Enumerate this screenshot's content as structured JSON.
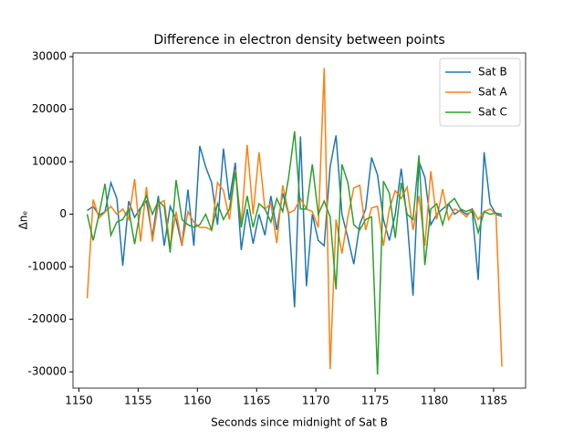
{
  "chart_data": {
    "type": "line",
    "title": "Difference in electron density between points",
    "xlabel": "Seconds since midnight of Sat B",
    "ylabel": "Δnₑ",
    "x": [
      1150.7,
      1151.2,
      1151.7,
      1152.2,
      1152.7,
      1153.2,
      1153.7,
      1154.2,
      1154.7,
      1155.2,
      1155.7,
      1156.2,
      1156.7,
      1157.2,
      1157.7,
      1158.2,
      1158.7,
      1159.2,
      1159.7,
      1160.2,
      1160.7,
      1161.2,
      1161.7,
      1162.2,
      1162.7,
      1163.2,
      1163.7,
      1164.2,
      1164.7,
      1165.2,
      1165.7,
      1166.2,
      1166.7,
      1167.2,
      1167.7,
      1168.2,
      1168.7,
      1169.2,
      1169.7,
      1170.2,
      1170.7,
      1171.2,
      1171.7,
      1172.2,
      1172.7,
      1173.2,
      1173.7,
      1174.2,
      1174.7,
      1175.2,
      1175.7,
      1176.2,
      1176.7,
      1177.2,
      1177.7,
      1178.2,
      1178.7,
      1179.2,
      1179.7,
      1180.2,
      1180.7,
      1181.2,
      1181.7,
      1182.2,
      1182.7,
      1183.2,
      1183.7,
      1184.2,
      1184.7,
      1185.2,
      1185.7
    ],
    "series": [
      {
        "name": "Sat B",
        "color": "#1f77b4",
        "values": [
          700,
          1500,
          -200,
          500,
          6000,
          3000,
          -9800,
          2500,
          -600,
          1200,
          2500,
          -4300,
          3500,
          -6000,
          1500,
          -1000,
          -6000,
          4700,
          -6000,
          13000,
          9000,
          6000,
          -2000,
          12500,
          2700,
          9800,
          -6800,
          1000,
          -5600,
          0,
          -4000,
          3500,
          -3000,
          4000,
          0,
          -17700,
          14800,
          -13700,
          0,
          -5000,
          -6000,
          9000,
          15000,
          0,
          -4500,
          -9500,
          -2000,
          1000,
          10800,
          7500,
          -1000,
          -5000,
          0,
          8700,
          -1000,
          -15500,
          10000,
          7000,
          -2000,
          0,
          1000,
          2000,
          0,
          800,
          0,
          500,
          -12500,
          11800,
          2000,
          0,
          -400
        ]
      },
      {
        "name": "Sat A",
        "color": "#ff7f0e",
        "values": [
          -16000,
          2800,
          -700,
          400,
          1500,
          0,
          1000,
          -1000,
          6700,
          -5200,
          5200,
          -5200,
          2000,
          2600,
          -6300,
          500,
          -5800,
          500,
          -1500,
          -2500,
          -2500,
          -3000,
          6000,
          4500,
          -1000,
          8500,
          -2000,
          13200,
          0,
          11800,
          1000,
          2000,
          -5500,
          5500,
          200,
          800,
          3000,
          1000,
          500,
          -2500,
          27800,
          -29500,
          -1000,
          -7500,
          -500,
          5000,
          5500,
          -3000,
          1200,
          1500,
          -6000,
          1000,
          4500,
          3000,
          5200,
          -3000,
          3500,
          -6000,
          8200,
          -1000,
          4800,
          -1000,
          1000,
          500,
          -500,
          1000,
          -1000,
          500,
          1000,
          0,
          -29000
        ]
      },
      {
        "name": "Sat C",
        "color": "#2ca02c",
        "values": [
          0,
          -5000,
          0,
          5800,
          -4000,
          -1500,
          -1000,
          1000,
          -5700,
          1000,
          3500,
          0,
          2500,
          1500,
          -7300,
          6500,
          -1000,
          -2000,
          -2500,
          -2000,
          0,
          -3000,
          2000,
          -1000,
          1000,
          8000,
          -2500,
          3500,
          -2500,
          2000,
          1000,
          -1500,
          3000,
          500,
          7000,
          15800,
          1000,
          1000,
          9500,
          0,
          2500,
          -500,
          -14300,
          9500,
          6000,
          -2000,
          -3000,
          -1000,
          -500,
          -30500,
          6300,
          4000,
          -4500,
          6000,
          0,
          -1000,
          11200,
          -9700,
          1000,
          2000,
          -2000,
          2000,
          3000,
          1000,
          500,
          1000,
          -3500,
          500,
          0,
          200,
          0
        ]
      }
    ],
    "xlim": [
      1149.5,
      1187.7
    ],
    "ylim": [
      -33100,
      30700
    ],
    "xticks": [
      1150,
      1155,
      1160,
      1165,
      1170,
      1175,
      1180,
      1185
    ],
    "yticks": [
      -30000,
      -20000,
      -10000,
      0,
      10000,
      20000,
      30000
    ],
    "legend": "upper right"
  }
}
